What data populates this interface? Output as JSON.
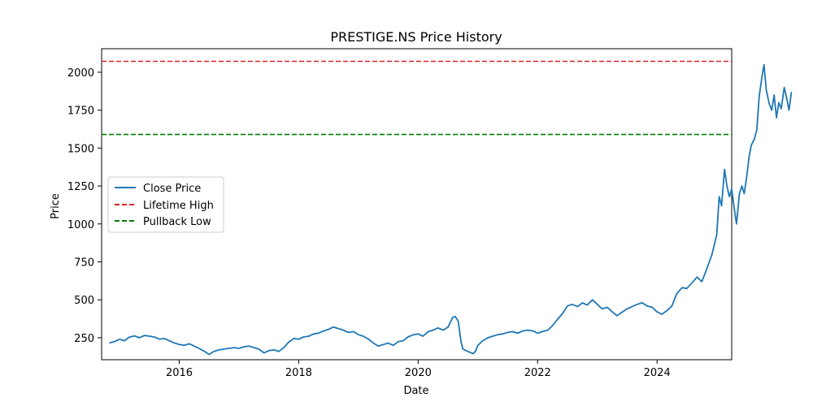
{
  "chart_data": {
    "type": "line",
    "title": "PRESTIGE.NS Price History",
    "xlabel": "Date",
    "ylabel": "Price",
    "xlim": [
      2014.7,
      2025.25
    ],
    "ylim": [
      105,
      2155
    ],
    "x_ticks": [
      2016,
      2018,
      2020,
      2022,
      2024
    ],
    "x_tick_labels": [
      "2016",
      "2018",
      "2020",
      "2022",
      "2024"
    ],
    "y_ticks": [
      250,
      500,
      750,
      1000,
      1250,
      1500,
      1750,
      2000
    ],
    "y_tick_labels": [
      "250",
      "500",
      "750",
      "1000",
      "1250",
      "1500",
      "1750",
      "2000"
    ],
    "grid": false,
    "legend_position": "center-left",
    "series": [
      {
        "name": "Close Price",
        "color": "#1f77b4",
        "style": "solid",
        "points": [
          [
            2014.83,
            215
          ],
          [
            2014.92,
            225
          ],
          [
            2015.0,
            240
          ],
          [
            2015.08,
            230
          ],
          [
            2015.17,
            255
          ],
          [
            2015.25,
            262
          ],
          [
            2015.33,
            250
          ],
          [
            2015.42,
            265
          ],
          [
            2015.5,
            260
          ],
          [
            2015.58,
            255
          ],
          [
            2015.67,
            240
          ],
          [
            2015.75,
            245
          ],
          [
            2015.83,
            230
          ],
          [
            2015.92,
            215
          ],
          [
            2016.0,
            205
          ],
          [
            2016.08,
            200
          ],
          [
            2016.17,
            210
          ],
          [
            2016.25,
            195
          ],
          [
            2016.33,
            180
          ],
          [
            2016.42,
            160
          ],
          [
            2016.5,
            140
          ],
          [
            2016.58,
            160
          ],
          [
            2016.67,
            170
          ],
          [
            2016.75,
            175
          ],
          [
            2016.83,
            180
          ],
          [
            2016.92,
            185
          ],
          [
            2017.0,
            180
          ],
          [
            2017.08,
            190
          ],
          [
            2017.17,
            195
          ],
          [
            2017.25,
            185
          ],
          [
            2017.33,
            175
          ],
          [
            2017.42,
            150
          ],
          [
            2017.5,
            165
          ],
          [
            2017.58,
            170
          ],
          [
            2017.67,
            160
          ],
          [
            2017.75,
            185
          ],
          [
            2017.83,
            220
          ],
          [
            2017.92,
            245
          ],
          [
            2018.0,
            240
          ],
          [
            2018.08,
            255
          ],
          [
            2018.17,
            260
          ],
          [
            2018.25,
            275
          ],
          [
            2018.33,
            280
          ],
          [
            2018.42,
            295
          ],
          [
            2018.5,
            305
          ],
          [
            2018.58,
            320
          ],
          [
            2018.67,
            310
          ],
          [
            2018.75,
            300
          ],
          [
            2018.83,
            285
          ],
          [
            2018.92,
            290
          ],
          [
            2019.0,
            270
          ],
          [
            2019.08,
            260
          ],
          [
            2019.17,
            240
          ],
          [
            2019.25,
            215
          ],
          [
            2019.33,
            195
          ],
          [
            2019.42,
            205
          ],
          [
            2019.5,
            215
          ],
          [
            2019.58,
            200
          ],
          [
            2019.67,
            225
          ],
          [
            2019.75,
            230
          ],
          [
            2019.83,
            255
          ],
          [
            2019.92,
            270
          ],
          [
            2020.0,
            275
          ],
          [
            2020.08,
            260
          ],
          [
            2020.17,
            290
          ],
          [
            2020.25,
            300
          ],
          [
            2020.33,
            315
          ],
          [
            2020.42,
            300
          ],
          [
            2020.5,
            320
          ],
          [
            2020.58,
            385
          ],
          [
            2020.62,
            390
          ],
          [
            2020.67,
            360
          ],
          [
            2020.72,
            220
          ],
          [
            2020.75,
            175
          ],
          [
            2020.83,
            160
          ],
          [
            2020.92,
            145
          ],
          [
            2020.96,
            160
          ],
          [
            2021.0,
            200
          ],
          [
            2021.08,
            230
          ],
          [
            2021.17,
            250
          ],
          [
            2021.25,
            260
          ],
          [
            2021.33,
            270
          ],
          [
            2021.42,
            275
          ],
          [
            2021.5,
            285
          ],
          [
            2021.58,
            290
          ],
          [
            2021.67,
            280
          ],
          [
            2021.75,
            295
          ],
          [
            2021.83,
            300
          ],
          [
            2021.92,
            295
          ],
          [
            2022.0,
            280
          ],
          [
            2022.08,
            290
          ],
          [
            2022.17,
            300
          ],
          [
            2022.25,
            330
          ],
          [
            2022.33,
            370
          ],
          [
            2022.42,
            410
          ],
          [
            2022.5,
            460
          ],
          [
            2022.58,
            470
          ],
          [
            2022.67,
            455
          ],
          [
            2022.75,
            480
          ],
          [
            2022.83,
            465
          ],
          [
            2022.92,
            500
          ],
          [
            2023.0,
            470
          ],
          [
            2023.08,
            440
          ],
          [
            2023.17,
            450
          ],
          [
            2023.25,
            420
          ],
          [
            2023.33,
            395
          ],
          [
            2023.42,
            420
          ],
          [
            2023.5,
            440
          ],
          [
            2023.58,
            455
          ],
          [
            2023.67,
            470
          ],
          [
            2023.75,
            480
          ],
          [
            2023.83,
            460
          ],
          [
            2023.92,
            450
          ],
          [
            2024.0,
            420
          ],
          [
            2024.08,
            405
          ],
          [
            2024.17,
            430
          ],
          [
            2024.25,
            460
          ],
          [
            2024.33,
            540
          ],
          [
            2024.42,
            580
          ],
          [
            2024.5,
            575
          ],
          [
            2024.58,
            610
          ],
          [
            2024.67,
            650
          ],
          [
            2024.75,
            620
          ],
          [
            2024.83,
            700
          ],
          [
            2024.92,
            800
          ],
          [
            2025.0,
            930
          ],
          [
            2025.04,
            1180
          ],
          [
            2025.08,
            1120
          ],
          [
            2025.13,
            1360
          ],
          [
            2025.17,
            1250
          ],
          [
            2025.21,
            1180
          ],
          [
            2025.25,
            1230
          ],
          [
            2025.29,
            1110
          ],
          [
            2025.33,
            1000
          ],
          [
            2025.38,
            1200
          ],
          [
            2025.42,
            1250
          ],
          [
            2025.46,
            1200
          ],
          [
            2025.5,
            1310
          ],
          [
            2025.54,
            1440
          ],
          [
            2025.58,
            1520
          ],
          [
            2025.63,
            1560
          ],
          [
            2025.67,
            1620
          ],
          [
            2025.71,
            1840
          ],
          [
            2025.75,
            1950
          ],
          [
            2025.79,
            2050
          ],
          [
            2025.83,
            1880
          ],
          [
            2025.88,
            1790
          ],
          [
            2025.92,
            1750
          ],
          [
            2025.96,
            1850
          ],
          [
            2026.0,
            1700
          ],
          [
            2026.04,
            1800
          ],
          [
            2026.08,
            1760
          ],
          [
            2026.13,
            1900
          ],
          [
            2026.17,
            1830
          ],
          [
            2026.21,
            1750
          ],
          [
            2026.25,
            1870
          ]
        ]
      },
      {
        "name": "Lifetime High",
        "color": "#d62728",
        "style": "dashed",
        "y": 2072
      },
      {
        "name": "Pullback Low",
        "color": "#008000",
        "style": "dashed",
        "y": 1590
      }
    ]
  }
}
